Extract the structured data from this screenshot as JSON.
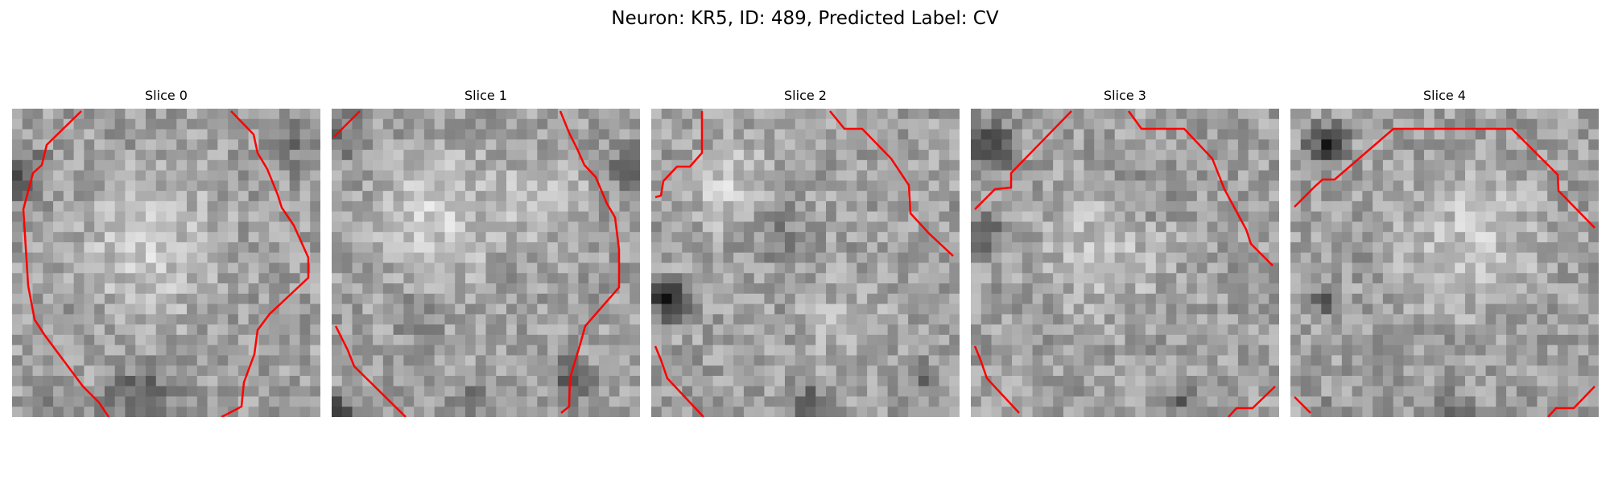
{
  "figure": {
    "title": "Neuron: KR5, ID: 489, Predicted Label: CV",
    "overlay_color": "#ff0000",
    "colormap": "gray"
  },
  "panels": [
    {
      "label": "Slice 0"
    },
    {
      "label": "Slice 1"
    },
    {
      "label": "Slice 2"
    },
    {
      "label": "Slice 3"
    },
    {
      "label": "Slice 4"
    }
  ]
}
